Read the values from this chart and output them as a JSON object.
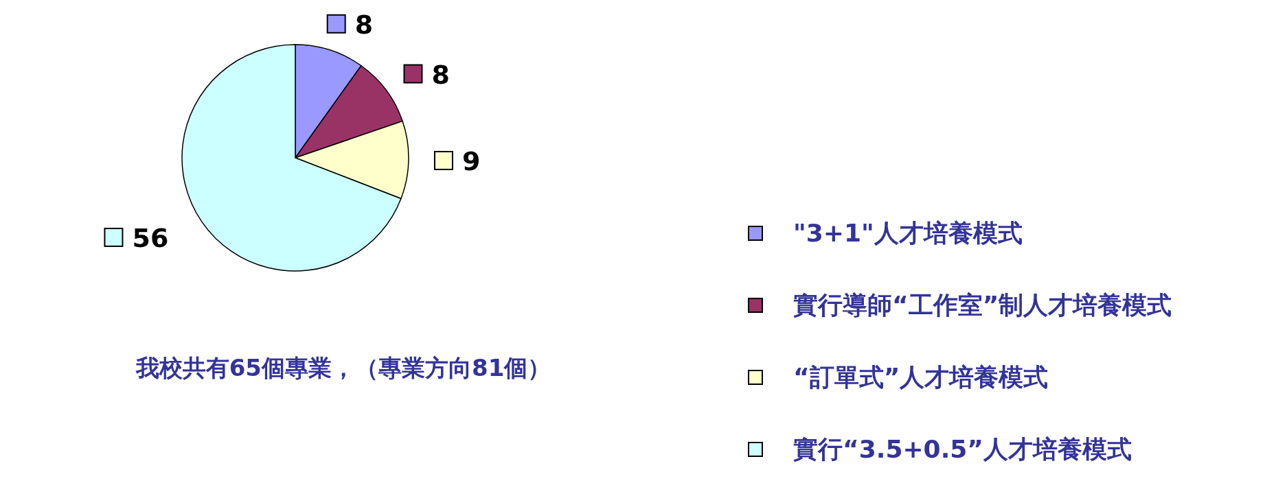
{
  "chart_data": {
    "type": "pie",
    "categories": [
      "\"3+1\"人才培養模式",
      "實行導師“工作室”制人才培養模式",
      "“訂單式”人才培養模式",
      "實行“3.5+0.5”人才培養模式"
    ],
    "values": [
      8,
      8,
      9,
      56
    ],
    "colors": [
      "#9999ff",
      "#993366",
      "#ffffcc",
      "#ccffff"
    ],
    "data_labels": true,
    "legend": "right",
    "annotations": [
      "我校共有65個專業，（專業方向81個）"
    ]
  }
}
